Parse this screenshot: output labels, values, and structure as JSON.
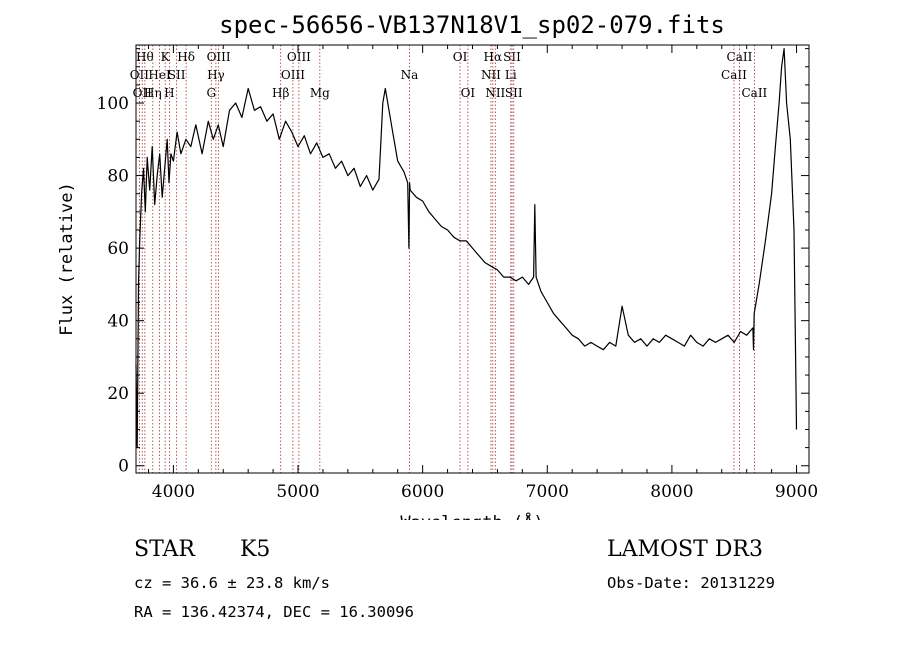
{
  "chart_data": {
    "type": "line",
    "title": "spec-56656-VB137N18V1_sp02-079.fits",
    "xlabel": "Wavelength (Å)",
    "ylabel": "Flux (relative)",
    "xlim": [
      3700,
      9100
    ],
    "ylim": [
      -2,
      116
    ],
    "xticks": [
      4000,
      5000,
      6000,
      7000,
      8000,
      9000
    ],
    "yticks": [
      0,
      20,
      40,
      60,
      80,
      100
    ],
    "grid": false,
    "series": [
      {
        "name": "spectrum",
        "x": [
          3700,
          3710,
          3720,
          3730,
          3745,
          3760,
          3775,
          3790,
          3810,
          3830,
          3850,
          3870,
          3890,
          3910,
          3930,
          3950,
          3965,
          3980,
          4000,
          4030,
          4060,
          4100,
          4140,
          4180,
          4230,
          4280,
          4320,
          4360,
          4400,
          4450,
          4500,
          4550,
          4600,
          4650,
          4700,
          4750,
          4800,
          4850,
          4900,
          4950,
          5000,
          5050,
          5100,
          5150,
          5200,
          5250,
          5300,
          5350,
          5400,
          5450,
          5500,
          5550,
          5600,
          5650,
          5680,
          5700,
          5730,
          5760,
          5800,
          5850,
          5880,
          5890,
          5895,
          5900,
          5950,
          6000,
          6050,
          6100,
          6150,
          6200,
          6250,
          6300,
          6350,
          6400,
          6450,
          6500,
          6550,
          6600,
          6650,
          6700,
          6750,
          6800,
          6850,
          6890,
          6900,
          6910,
          6950,
          7000,
          7050,
          7100,
          7150,
          7200,
          7250,
          7300,
          7350,
          7400,
          7450,
          7500,
          7550,
          7600,
          7650,
          7700,
          7750,
          7800,
          7850,
          7900,
          7950,
          8000,
          8050,
          8100,
          8150,
          8200,
          8250,
          8300,
          8350,
          8400,
          8450,
          8500,
          8550,
          8600,
          8650,
          8655,
          8660,
          8700,
          8750,
          8800,
          8830,
          8860,
          8880,
          8900,
          8920,
          8950,
          8980,
          9000
        ],
        "y": [
          28,
          5,
          50,
          62,
          75,
          82,
          70,
          85,
          76,
          88,
          72,
          80,
          86,
          74,
          82,
          90,
          78,
          86,
          84,
          92,
          86,
          90,
          88,
          94,
          86,
          95,
          90,
          94,
          88,
          98,
          100,
          96,
          104,
          98,
          99,
          95,
          97,
          90,
          95,
          92,
          88,
          91,
          86,
          89,
          85,
          86,
          82,
          84,
          80,
          82,
          77,
          80,
          76,
          79,
          100,
          104,
          98,
          92,
          84,
          81,
          78,
          60,
          78,
          76,
          74,
          73,
          70,
          68,
          66,
          65,
          63,
          62,
          62,
          60,
          58,
          56,
          55,
          54,
          52,
          52,
          51,
          52,
          50,
          52,
          72,
          52,
          48,
          45,
          42,
          40,
          38,
          36,
          35,
          33,
          34,
          33,
          32,
          34,
          33,
          44,
          36,
          34,
          35,
          33,
          35,
          34,
          36,
          35,
          34,
          33,
          36,
          34,
          33,
          35,
          34,
          35,
          36,
          34,
          37,
          36,
          38,
          32,
          42,
          50,
          62,
          75,
          88,
          100,
          110,
          115,
          100,
          90,
          65,
          10
        ]
      }
    ],
    "lines": [
      {
        "x": 3727,
        "label": "OII",
        "row": 1
      },
      {
        "x": 3750,
        "label": "OII",
        "row": 2
      },
      {
        "x": 3771,
        "label": "Hθ",
        "row": 0
      },
      {
        "x": 3835,
        "label": "Hη",
        "row": 2
      },
      {
        "x": 3889,
        "label": "HeI",
        "row": 1
      },
      {
        "x": 3934,
        "label": "K",
        "row": 0
      },
      {
        "x": 3968,
        "label": "H",
        "row": 2
      },
      {
        "x": 4026,
        "label": "SII",
        "row": 1
      },
      {
        "x": 4102,
        "label": "Hδ",
        "row": 0
      },
      {
        "x": 4304,
        "label": "G",
        "row": 2
      },
      {
        "x": 4341,
        "label": "Hγ",
        "row": 1
      },
      {
        "x": 4363,
        "label": "OIII",
        "row": 0
      },
      {
        "x": 4861,
        "label": "Hβ",
        "row": 2
      },
      {
        "x": 4959,
        "label": "OIII",
        "row": 1
      },
      {
        "x": 5007,
        "label": "OIII",
        "row": 0
      },
      {
        "x": 5175,
        "label": "Mg",
        "row": 2
      },
      {
        "x": 5894,
        "label": "Na",
        "row": 1
      },
      {
        "x": 6300,
        "label": "OI",
        "row": 0
      },
      {
        "x": 6363,
        "label": "OI",
        "row": 2
      },
      {
        "x": 6548,
        "label": "NII",
        "row": 1
      },
      {
        "x": 6563,
        "label": "Hα",
        "row": 0
      },
      {
        "x": 6583,
        "label": "NII",
        "row": 2
      },
      {
        "x": 6707,
        "label": "Li",
        "row": 1
      },
      {
        "x": 6717,
        "label": "SII",
        "row": 0
      },
      {
        "x": 6731,
        "label": "SII",
        "row": 2
      },
      {
        "x": 8498,
        "label": "CaII",
        "row": 1
      },
      {
        "x": 8542,
        "label": "CaII",
        "row": 0
      },
      {
        "x": 8662,
        "label": "CaII",
        "row": 2
      }
    ]
  },
  "info": {
    "object_class": "STAR",
    "subclass": "K5",
    "redshift": "cz = 36.6 ± 23.8 km/s",
    "coords": "RA = 136.42374, DEC =  16.30096",
    "survey": "LAMOST DR3",
    "obs_date": "Obs-Date: 20131229"
  }
}
